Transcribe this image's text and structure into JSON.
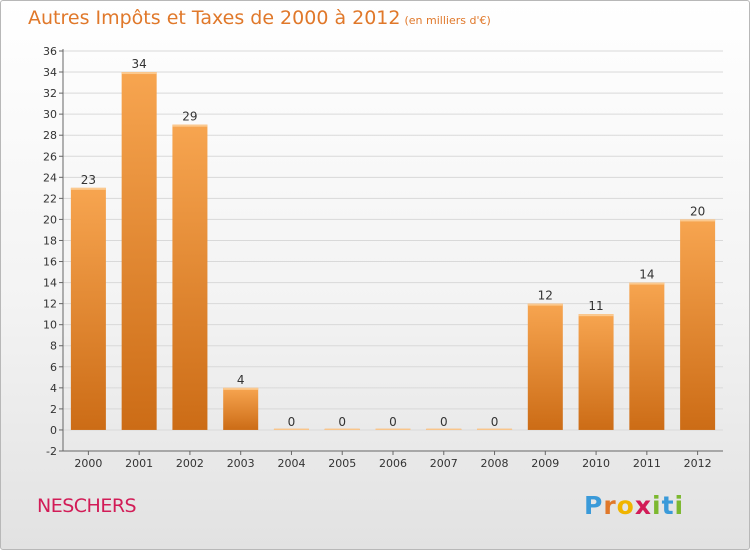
{
  "header": {
    "title": "Autres Impôts et Taxes de 2000 à 2012",
    "subtitle": "(en milliers d'€)"
  },
  "location": "NESCHERS",
  "logo": {
    "letters": [
      "P",
      "r",
      "o",
      "x",
      "i",
      "t",
      "i"
    ],
    "colors": [
      "#3a9ad9",
      "#e0782a",
      "#f0b400",
      "#d21c57",
      "#7cb82f",
      "#3a9ad9",
      "#7cb82f"
    ]
  },
  "colors": {
    "bar_light": "#f7a550",
    "bar_dark": "#cc6c16",
    "title": "#e0782a",
    "grid": "#d9d9d9"
  },
  "chart_data": {
    "type": "bar",
    "title": "Autres Impôts et Taxes de 2000 à 2012",
    "subtitle": "(en milliers d'€)",
    "categories": [
      "2000",
      "2001",
      "2002",
      "2003",
      "2004",
      "2005",
      "2006",
      "2007",
      "2008",
      "2009",
      "2010",
      "2011",
      "2012"
    ],
    "values": [
      23,
      34,
      29,
      4,
      0,
      0,
      0,
      0,
      0,
      12,
      11,
      14,
      20
    ],
    "ylim": [
      -2,
      36
    ],
    "yticks": [
      -2,
      0,
      2,
      4,
      6,
      8,
      10,
      12,
      14,
      16,
      18,
      20,
      22,
      24,
      26,
      28,
      30,
      32,
      34,
      36
    ],
    "grid": true,
    "xlabel": "",
    "ylabel": ""
  }
}
